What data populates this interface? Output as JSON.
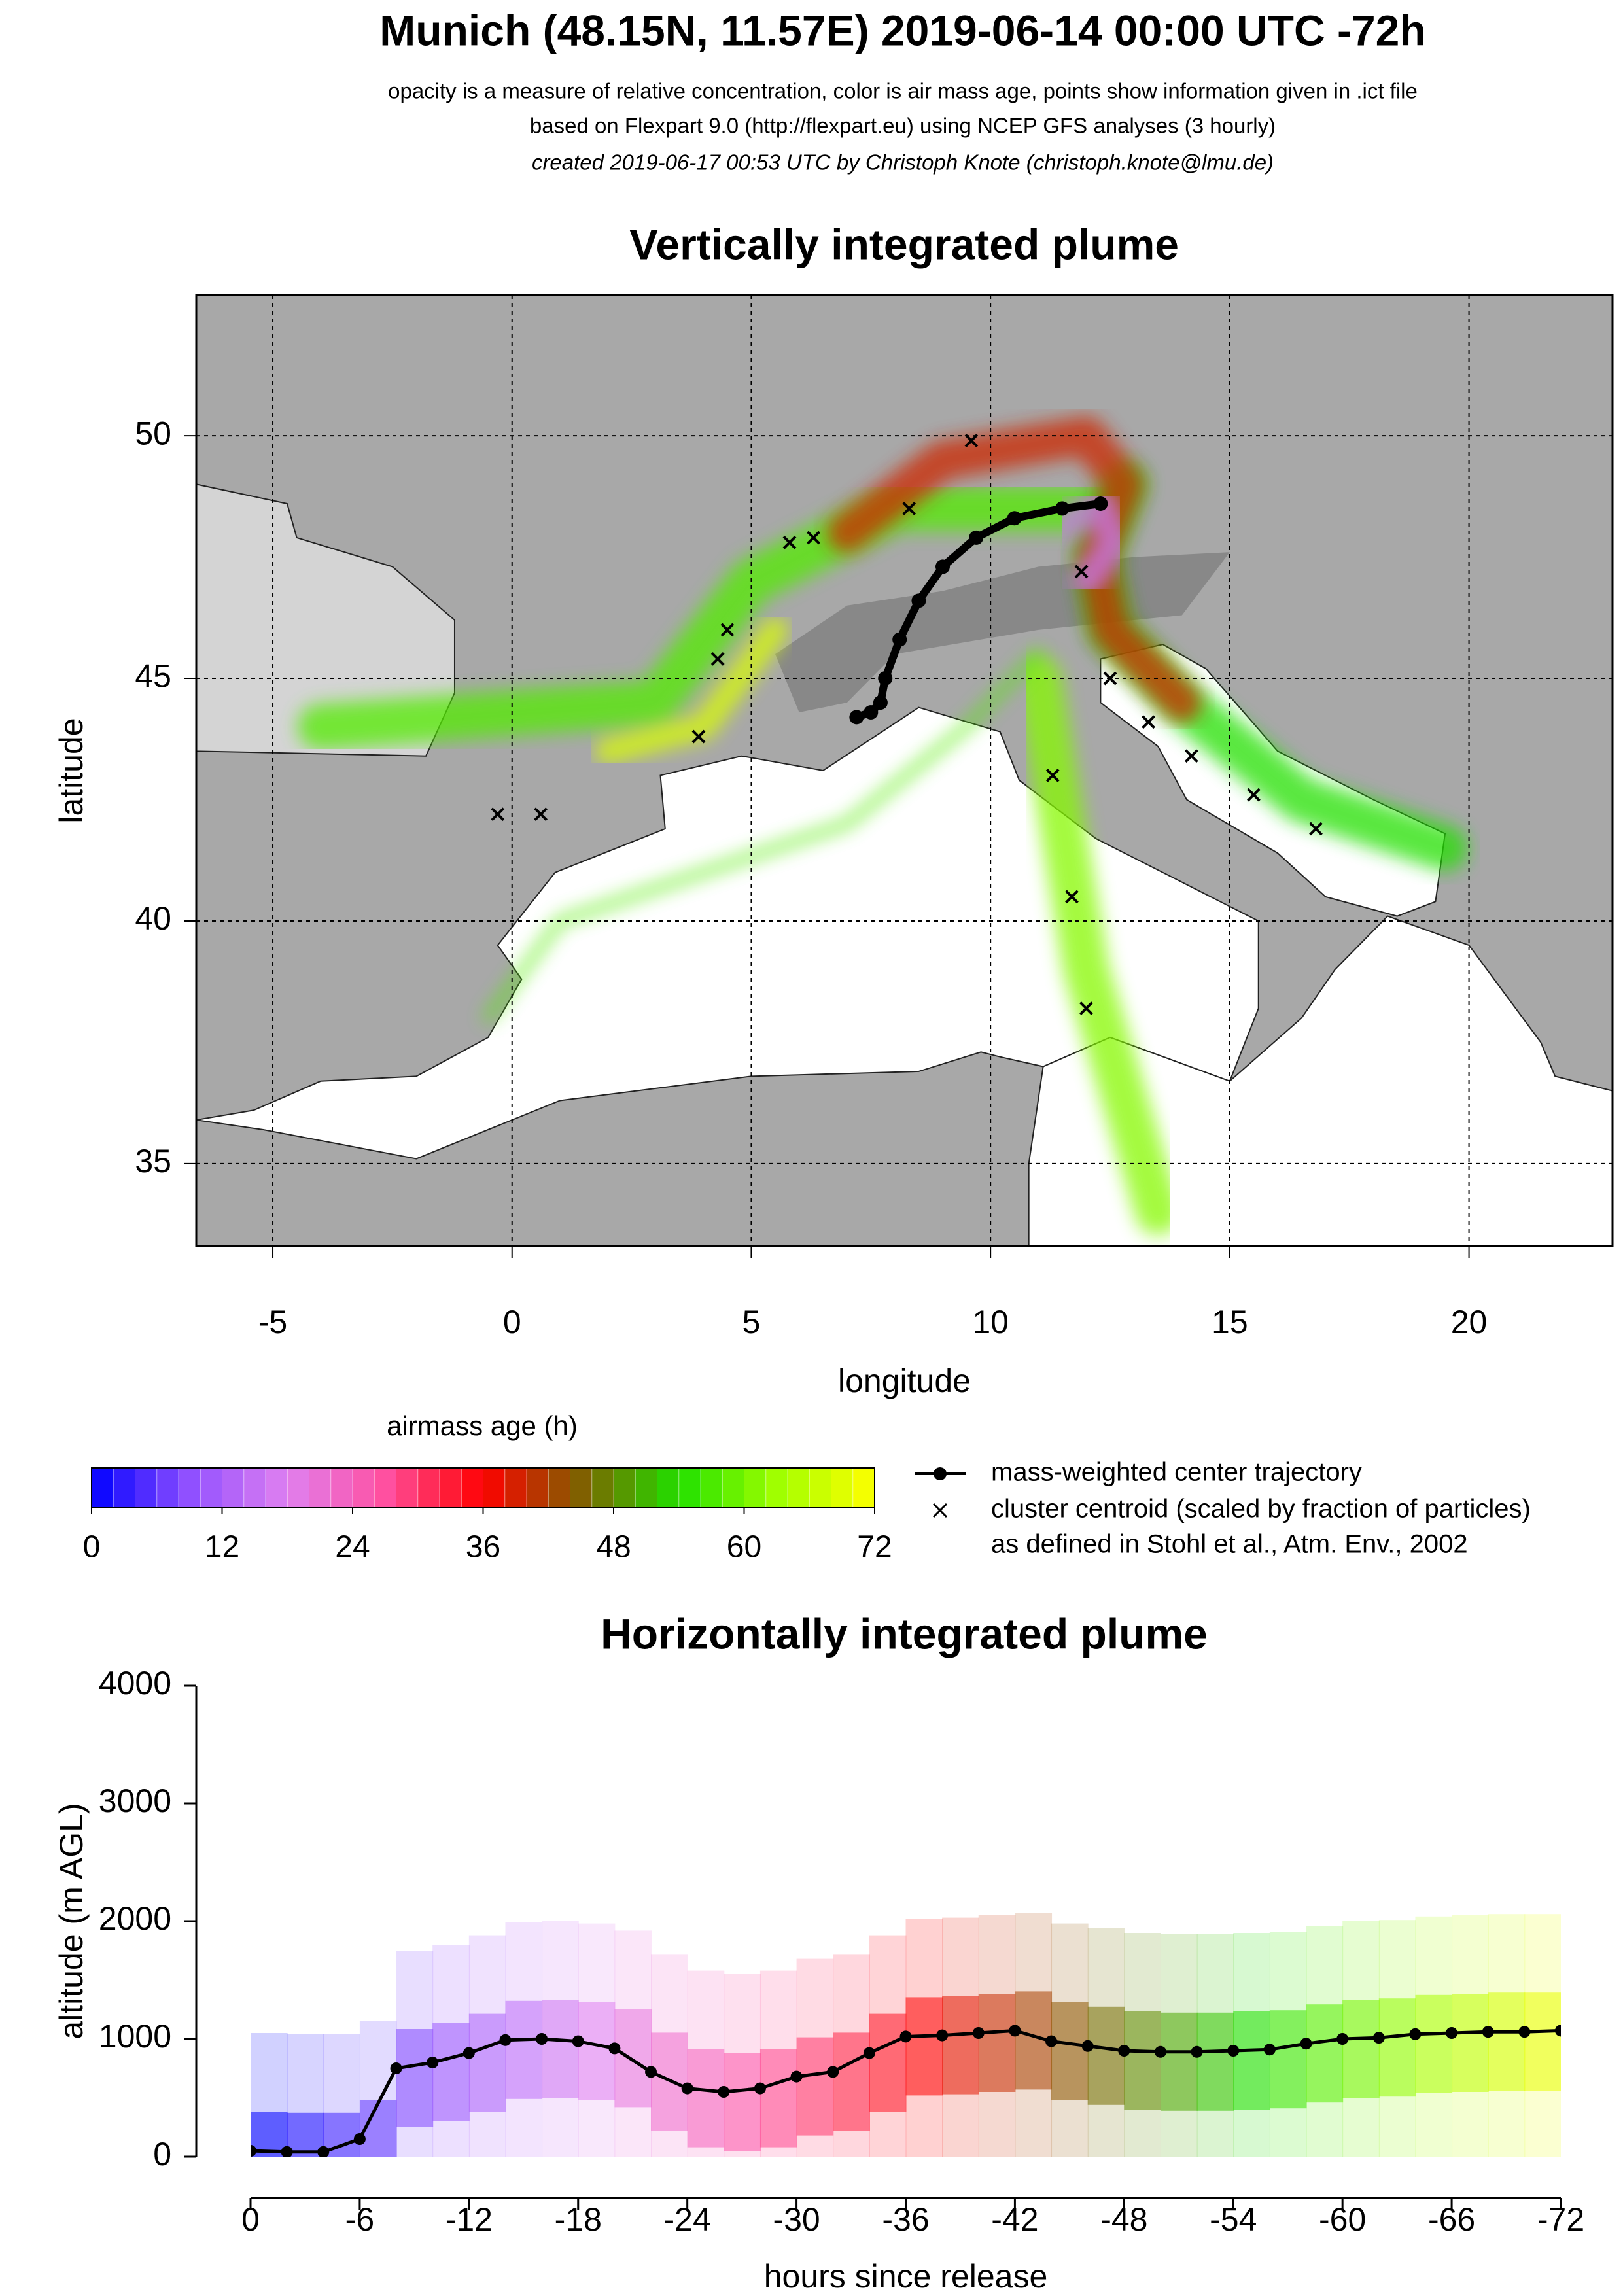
{
  "header": {
    "title": "Munich (48.15N, 11.57E) 2019-06-14 00:00 UTC -72h",
    "lines": [
      "opacity is a measure of relative concentration, color is air mass age, points show information given in .ict file",
      "based on Flexpart 9.0 (http://flexpart.eu) using NCEP GFS analyses (3 hourly)",
      "created 2019-06-17 00:53 UTC by Christoph Knote (christoph.knote@lmu.de)"
    ]
  },
  "chart_data": [
    {
      "type": "map",
      "title": "Vertically integrated plume",
      "xlabel": "longitude",
      "ylabel": "latitude",
      "xlim": [
        -6.6,
        23
      ],
      "ylim": [
        33.3,
        52.9
      ],
      "xticks": [
        -5,
        0,
        5,
        10,
        15,
        20
      ],
      "yticks": [
        35,
        40,
        45,
        50
      ],
      "grid": true,
      "series": [
        {
          "name": "mass-weighted center trajectory",
          "color": "#000000",
          "x": [
            12.3,
            11.5,
            10.5,
            9.7,
            9.0,
            8.5,
            8.1,
            7.8,
            7.7,
            7.5,
            7.2
          ],
          "values": [
            48.6,
            48.5,
            48.3,
            47.9,
            47.3,
            46.6,
            45.8,
            45.0,
            44.5,
            44.3,
            44.2
          ]
        },
        {
          "name": "cluster centroid (scaled by fraction of particles)",
          "color": "#000000",
          "x": [
            4.5,
            4.3,
            5.8,
            6.3,
            8.3,
            9.6,
            11.9,
            12.5,
            13.3,
            14.2,
            15.5,
            16.8,
            11.3,
            11.7,
            12.0,
            3.9,
            -0.3,
            0.6
          ],
          "values": [
            46.0,
            45.4,
            47.8,
            47.9,
            48.5,
            49.9,
            47.2,
            45.0,
            44.1,
            43.4,
            42.6,
            41.9,
            43.0,
            40.5,
            38.2,
            43.8,
            42.2,
            42.2
          ]
        }
      ],
      "legend_note": "as defined in Stohl et al., Atm. Env., 2002"
    },
    {
      "type": "colorbar",
      "title": "airmass age (h)",
      "lim": [
        0,
        72
      ],
      "ticks": [
        0,
        12,
        24,
        36,
        48,
        60,
        72
      ],
      "colors": [
        "#0000ff",
        "#9050ff",
        "#e080f0",
        "#ff50a0",
        "#ff0000",
        "#806000",
        "#20e000",
        "#a0ff00",
        "#ffff00"
      ]
    },
    {
      "type": "line",
      "title": "Horizontally integrated plume",
      "xlabel": "hours since release",
      "ylabel": "altitude (m AGL)",
      "xlim": [
        0,
        -72
      ],
      "ylim": [
        0,
        4000
      ],
      "xticks": [
        0,
        -6,
        -12,
        -18,
        -24,
        -30,
        -36,
        -42,
        -48,
        -54,
        -60,
        -66,
        -72
      ],
      "yticks": [
        0,
        1000,
        2000,
        3000,
        4000
      ],
      "series": [
        {
          "name": "mass-weighted center trajectory",
          "color": "#000000",
          "x": [
            0,
            -2,
            -4,
            -6,
            -8,
            -10,
            -12,
            -14,
            -16,
            -18,
            -20,
            -22,
            -24,
            -26,
            -28,
            -30,
            -32,
            -34,
            -36,
            -38,
            -40,
            -42,
            -44,
            -46,
            -48,
            -50,
            -52,
            -54,
            -56,
            -58,
            -60,
            -62,
            -64,
            -66,
            -68,
            -70,
            -72
          ],
          "values": [
            50,
            40,
            40,
            150,
            750,
            800,
            880,
            990,
            1000,
            980,
            920,
            720,
            580,
            550,
            580,
            680,
            720,
            880,
            1020,
            1030,
            1050,
            1070,
            980,
            940,
            900,
            890,
            890,
            900,
            910,
            960,
            1000,
            1010,
            1040,
            1050,
            1060,
            1060,
            1070
          ]
        }
      ]
    }
  ]
}
